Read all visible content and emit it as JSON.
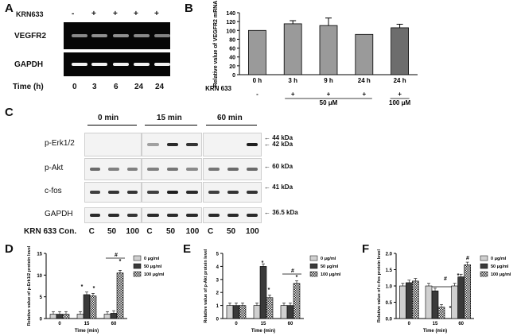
{
  "panels": {
    "A": "A",
    "B": "B",
    "C": "C",
    "D": "D",
    "E": "E",
    "F": "F"
  },
  "panelA": {
    "treatment_label": "KRN633",
    "treatment_signs": [
      "-",
      "+",
      "+",
      "+",
      "+"
    ],
    "gel1_label": "VEGFR2",
    "gel2_label": "GAPDH",
    "time_label": "Time (h)",
    "times": [
      "0",
      "3",
      "6",
      "24",
      "24"
    ],
    "vegfr2_band_intensity": [
      0.55,
      0.6,
      0.6,
      0.55,
      0.5
    ],
    "gapdh_band_intensity": [
      0.95,
      0.95,
      0.95,
      0.95,
      0.95
    ]
  },
  "panelC": {
    "time_headers": [
      "0 min",
      "15 min",
      "60 min"
    ],
    "row_labels": [
      "p-Erk1/2",
      "p-Akt",
      "c-fos",
      "GAPDH"
    ],
    "kda_labels": [
      "44 kDa",
      "42 kDa",
      "60 kDa",
      "41 kDa",
      "36.5 kDa"
    ],
    "lane_title": "KRN 633 Con.",
    "lanes": [
      "C",
      "50",
      "100",
      "C",
      "50",
      "100",
      "C",
      "50",
      "100"
    ]
  },
  "chart_data": [
    {
      "type": "bar",
      "panel": "B",
      "ylabel": "Relative value of VEGFR2 mRNA",
      "categories": [
        "0 h",
        "3 h",
        "9 h",
        "24 h",
        "24 h"
      ],
      "values": [
        100,
        115,
        111,
        91,
        106
      ],
      "errors": [
        0,
        7,
        17,
        0,
        8
      ],
      "ylim": [
        0,
        140
      ],
      "yticks": [
        "0",
        "20",
        "40",
        "60",
        "80",
        "100",
        "120",
        "140"
      ],
      "bottom_label": "KRN 633",
      "signs": [
        "-",
        "+",
        "+",
        "+",
        "+"
      ],
      "dose_labels": [
        "50 μM",
        "100 μM"
      ],
      "bar_colors": [
        "#9a9a9a",
        "#9a9a9a",
        "#9a9a9a",
        "#9a9a9a",
        "#6d6d6d"
      ]
    },
    {
      "type": "bar",
      "panel": "D",
      "ylabel": "Relative value of p-Erk1/2 protein level",
      "xlabel": "Time (min)",
      "categories": [
        "0",
        "15",
        "60"
      ],
      "series": [
        {
          "name": "0 μg/ml",
          "values": [
            1.0,
            1.0,
            1.0
          ]
        },
        {
          "name": "50 μg/ml",
          "values": [
            1.0,
            5.5,
            1.2
          ]
        },
        {
          "name": "100 μg/ml",
          "values": [
            1.0,
            5.2,
            10.5
          ]
        }
      ],
      "ylim": [
        0,
        15
      ],
      "yticks": [
        "0",
        "5",
        "10",
        "15"
      ],
      "markers": [
        "*",
        "*",
        "*",
        "#"
      ]
    },
    {
      "type": "bar",
      "panel": "E",
      "ylabel": "Relative value of p-Akt protein level",
      "xlabel": "Time (min)",
      "categories": [
        "0",
        "15",
        "60"
      ],
      "series": [
        {
          "name": "0 μg/ml",
          "values": [
            1.0,
            1.0,
            1.0
          ]
        },
        {
          "name": "50 μg/ml",
          "values": [
            1.0,
            4.0,
            1.0
          ]
        },
        {
          "name": "100 μg/ml",
          "values": [
            1.0,
            1.6,
            2.7
          ]
        }
      ],
      "ylim": [
        0,
        5
      ],
      "yticks": [
        "0",
        "1",
        "2",
        "3",
        "4",
        "5"
      ],
      "markers": [
        "*",
        "*",
        "*",
        "#"
      ]
    },
    {
      "type": "bar",
      "panel": "F",
      "ylabel": "Relative value of c-fos protein level",
      "xlabel": "Time (min)",
      "categories": [
        "0",
        "15",
        "60"
      ],
      "series": [
        {
          "name": "0 μg/ml",
          "values": [
            1.0,
            1.0,
            1.0
          ]
        },
        {
          "name": "50 μg/ml",
          "values": [
            1.1,
            0.85,
            1.28
          ]
        },
        {
          "name": "100 μg/ml",
          "values": [
            1.15,
            0.35,
            1.65
          ]
        }
      ],
      "ylim": [
        0,
        2.0
      ],
      "yticks": [
        "0.0",
        "0.5",
        "1.0",
        "1.5",
        "2.0"
      ],
      "markers": [
        "#",
        "*",
        "*",
        "#"
      ]
    }
  ]
}
